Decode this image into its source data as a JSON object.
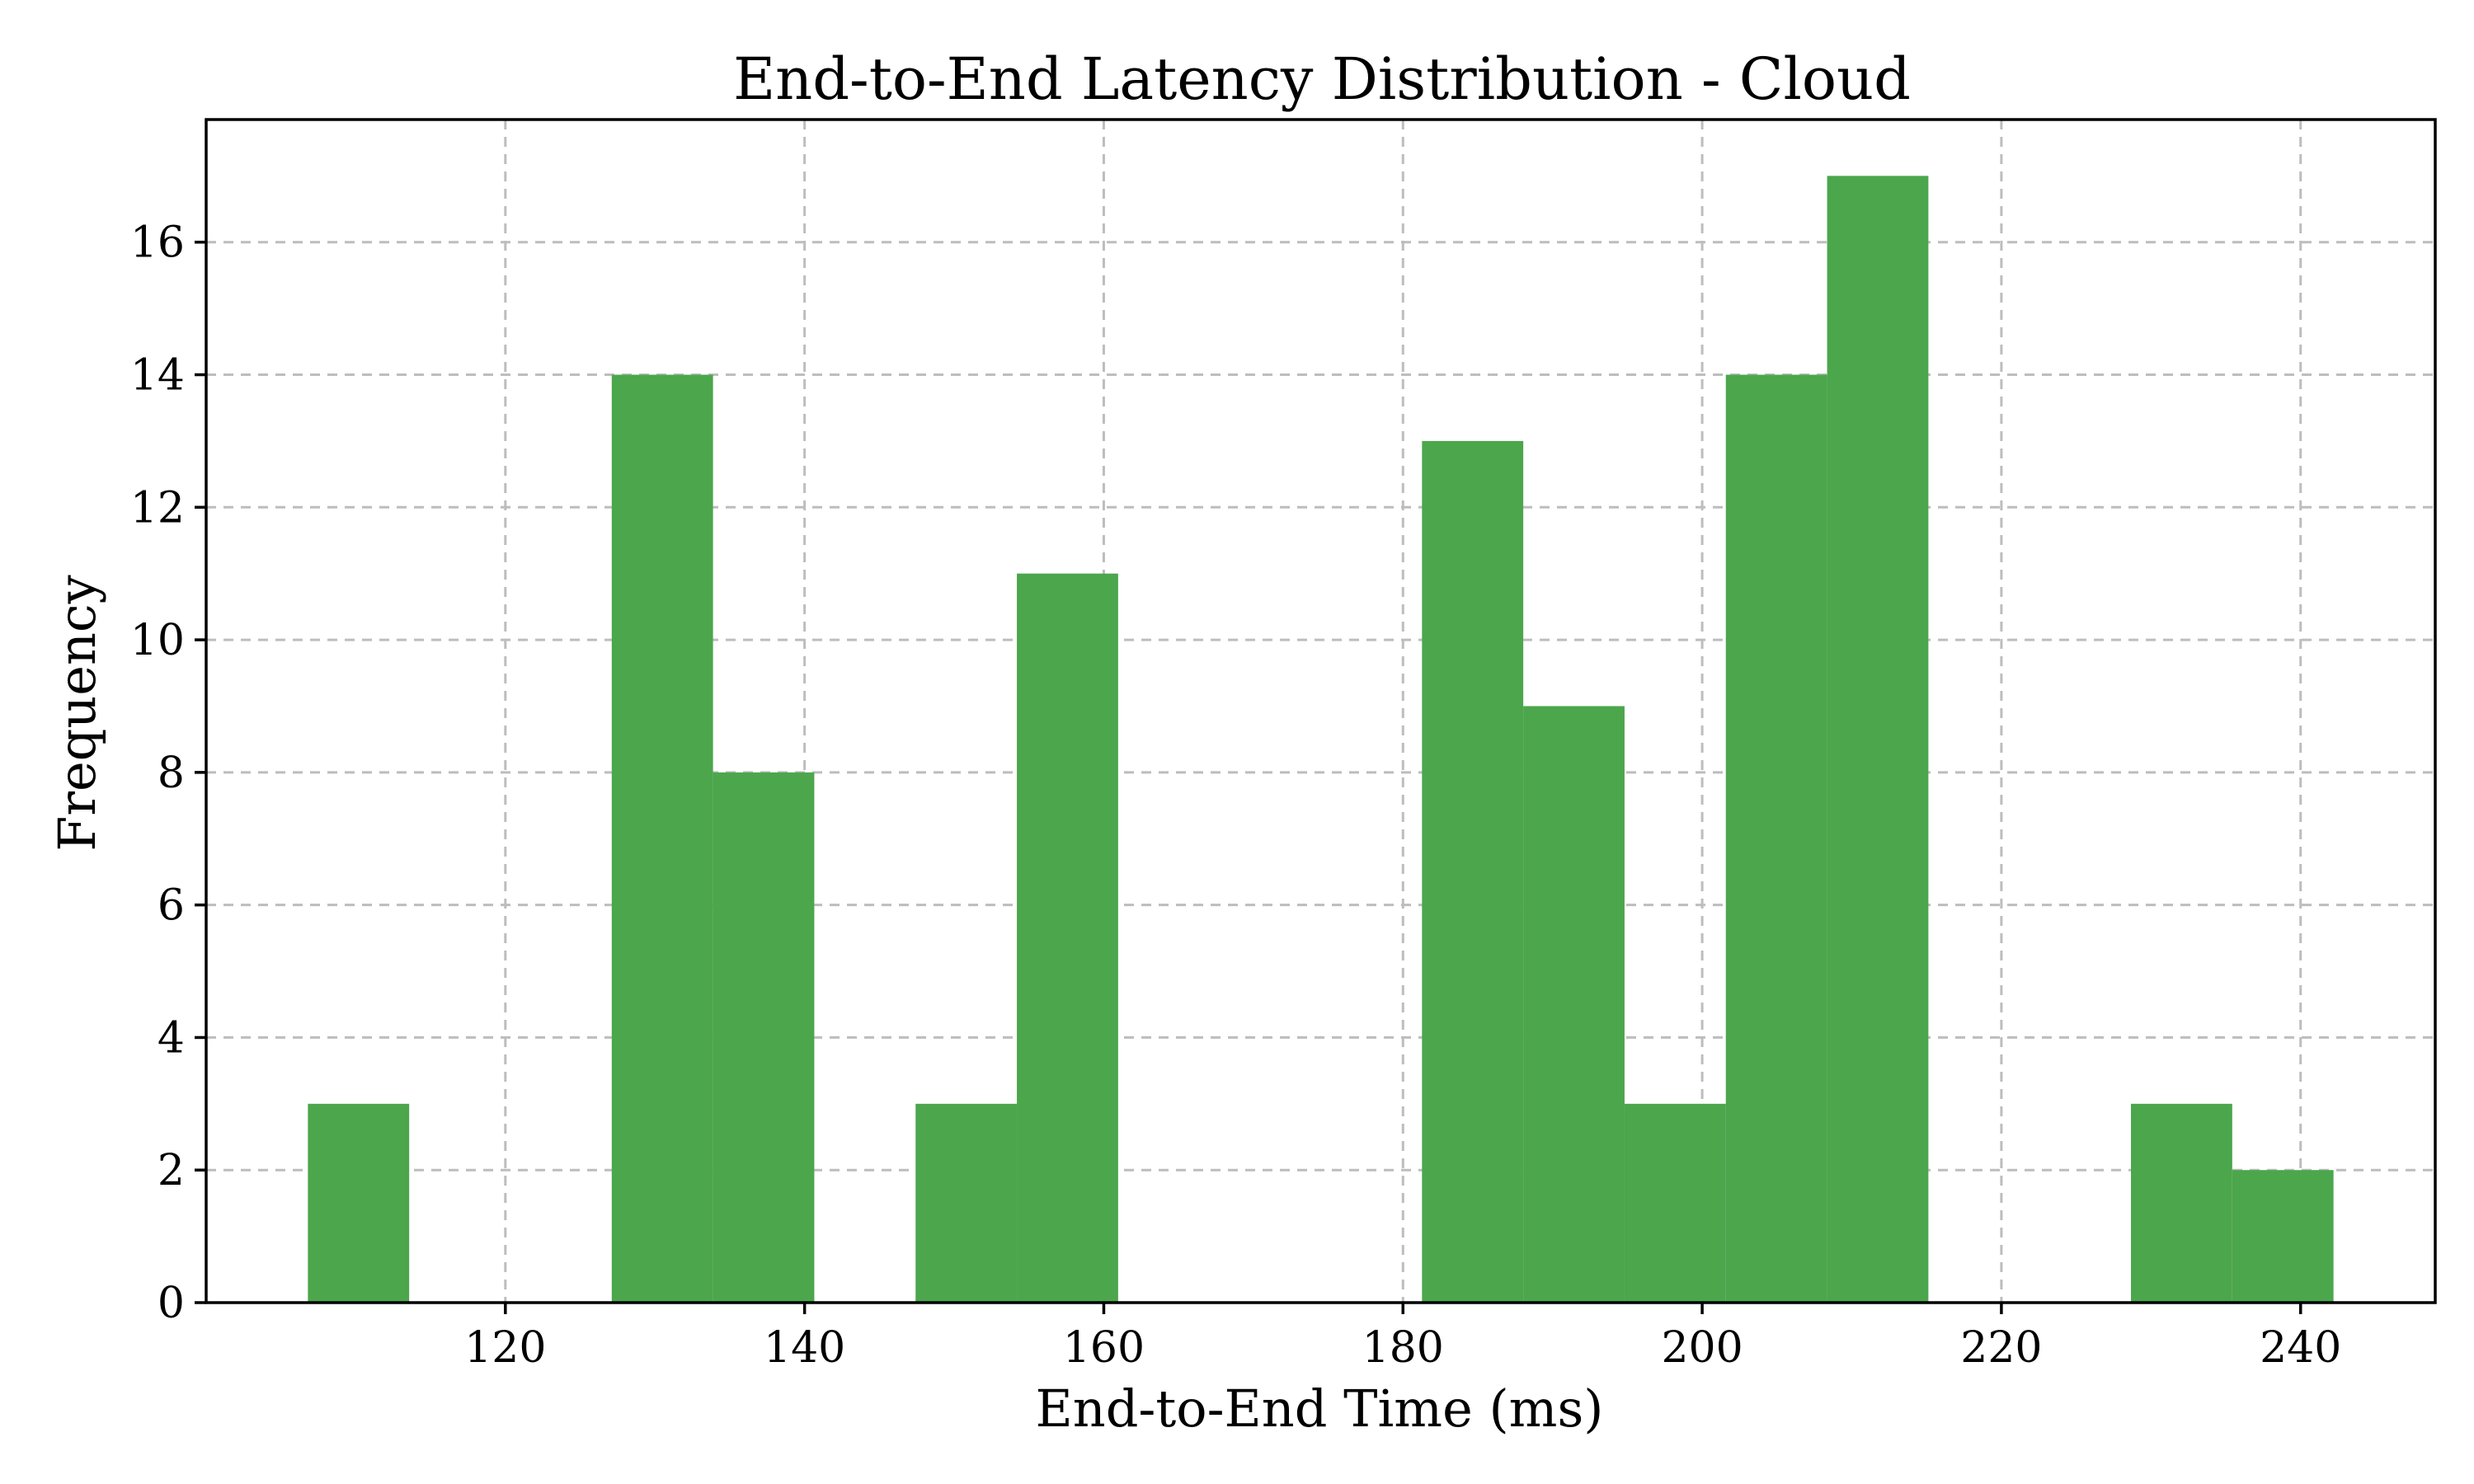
{
  "chart_data": {
    "type": "bar",
    "title": "End-to-End Latency Distribution - Cloud",
    "xlabel": "End-to-End Time (ms)",
    "ylabel": "Frequency",
    "bin_start": 106.8,
    "bin_width": 6.77,
    "bins": [
      {
        "start": 106.8,
        "end": 113.57,
        "count": 3
      },
      {
        "start": 113.57,
        "end": 120.34,
        "count": 0
      },
      {
        "start": 120.34,
        "end": 127.11,
        "count": 0
      },
      {
        "start": 127.11,
        "end": 133.88,
        "count": 14
      },
      {
        "start": 133.88,
        "end": 140.65,
        "count": 8
      },
      {
        "start": 140.65,
        "end": 147.42,
        "count": 0
      },
      {
        "start": 147.42,
        "end": 154.19,
        "count": 3
      },
      {
        "start": 154.19,
        "end": 160.96,
        "count": 11
      },
      {
        "start": 160.96,
        "end": 167.73,
        "count": 0
      },
      {
        "start": 167.73,
        "end": 174.5,
        "count": 0
      },
      {
        "start": 174.5,
        "end": 181.27,
        "count": 0
      },
      {
        "start": 181.27,
        "end": 188.04,
        "count": 13
      },
      {
        "start": 188.04,
        "end": 194.81,
        "count": 9
      },
      {
        "start": 194.81,
        "end": 201.58,
        "count": 3
      },
      {
        "start": 201.58,
        "end": 208.35,
        "count": 14
      },
      {
        "start": 208.35,
        "end": 215.12,
        "count": 17
      },
      {
        "start": 215.12,
        "end": 221.89,
        "count": 0
      },
      {
        "start": 221.89,
        "end": 228.66,
        "count": 0
      },
      {
        "start": 228.66,
        "end": 235.43,
        "count": 3
      },
      {
        "start": 235.43,
        "end": 242.2,
        "count": 2
      }
    ],
    "xlim": [
      100.0,
      249.0
    ],
    "ylim": [
      0,
      17.85
    ],
    "xticks": [
      120,
      140,
      160,
      180,
      200,
      220,
      240
    ],
    "yticks": [
      0,
      2,
      4,
      6,
      8,
      10,
      12,
      14,
      16
    ],
    "grid": true,
    "bar_color": "#4ca64c",
    "grid_color": "#bdbdbd"
  }
}
